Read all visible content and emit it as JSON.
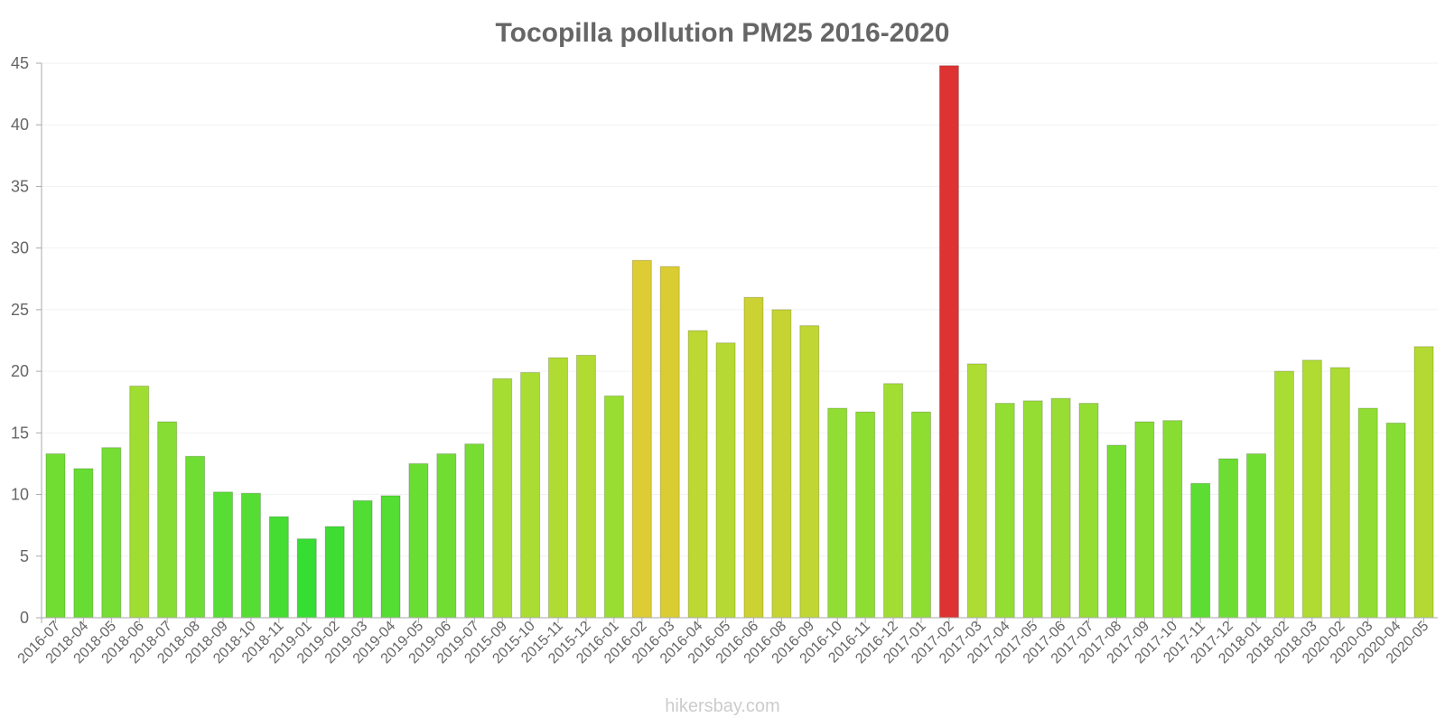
{
  "chart_data": {
    "type": "bar",
    "title": "Tocopilla pollution PM25 2016-2020",
    "xlabel": "",
    "ylabel": "",
    "ylim": [
      0,
      45
    ],
    "yticks": [
      0,
      5,
      10,
      15,
      20,
      25,
      30,
      35,
      40,
      45
    ],
    "grid": true,
    "legend": "none",
    "credit": "hikersbay.com",
    "categories": [
      "2016-07",
      "2018-04",
      "2018-05",
      "2018-06",
      "2018-07",
      "2018-08",
      "2018-09",
      "2018-10",
      "2018-11",
      "2019-01",
      "2019-02",
      "2019-03",
      "2019-04",
      "2019-05",
      "2019-06",
      "2019-07",
      "2015-09",
      "2015-10",
      "2015-11",
      "2015-12",
      "2016-01",
      "2016-02",
      "2016-03",
      "2016-04",
      "2016-05",
      "2016-06",
      "2016-08",
      "2016-09",
      "2016-10",
      "2016-11",
      "2016-12",
      "2017-01",
      "2017-02",
      "2017-03",
      "2017-04",
      "2017-05",
      "2017-06",
      "2017-07",
      "2017-08",
      "2017-09",
      "2017-10",
      "2017-11",
      "2017-12",
      "2018-01",
      "2018-02",
      "2018-03",
      "2020-02",
      "2020-03",
      "2020-04",
      "2020-05"
    ],
    "values": [
      13.3,
      12.1,
      13.8,
      18.8,
      15.9,
      13.1,
      10.2,
      10.1,
      8.2,
      6.4,
      7.4,
      9.5,
      9.9,
      12.5,
      13.3,
      14.1,
      19.4,
      19.9,
      21.1,
      21.3,
      18.0,
      29.0,
      28.5,
      23.3,
      22.3,
      26.0,
      25.0,
      23.7,
      17.0,
      16.7,
      19.0,
      16.7,
      44.8,
      20.6,
      17.4,
      17.6,
      17.8,
      17.4,
      14.0,
      15.9,
      16.0,
      10.9,
      12.9,
      13.3,
      20.0,
      20.9,
      20.3,
      17.0,
      15.8,
      22.0
    ],
    "colors": {
      "low": "#33dd33",
      "mid": "#aadd33",
      "high": "#ddcc33",
      "extreme": "#dd3333",
      "axis": "#aaaaaa",
      "grid": "#f2f2f2"
    }
  }
}
